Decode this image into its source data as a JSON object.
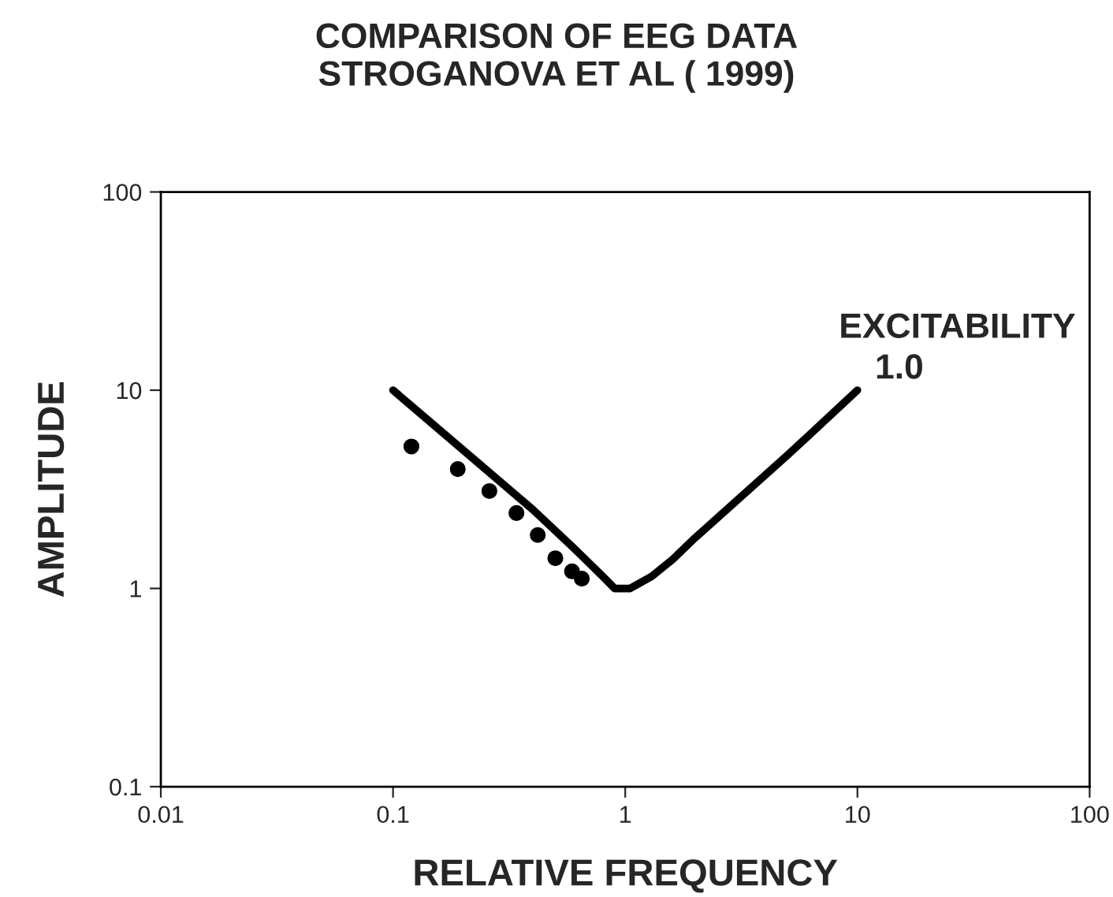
{
  "chart_data": {
    "type": "line",
    "title": "COMPARISON OF EEG DATA\nSTROGANOVA ET AL ( 1999)",
    "xlabel": "RELATIVE FREQUENCY",
    "ylabel": "AMPLITUDE",
    "log": "xy",
    "grid": false,
    "legend": false,
    "xlim": [
      0.01,
      100
    ],
    "xticks": [
      0.01,
      0.1,
      1,
      10,
      100
    ],
    "ylim": [
      0.1,
      100
    ],
    "yticks": [
      0.1,
      1,
      10,
      100
    ],
    "series": [
      {
        "color": "#000000",
        "marker": "none",
        "line_style": "solid",
        "x": [
          0.1,
          0.2,
          0.4,
          0.6,
          0.8,
          0.9,
          1.05,
          1.3,
          1.6,
          2,
          5,
          10
        ],
        "values": [
          10,
          5,
          2.5,
          1.6,
          1.15,
          1.0,
          1.0,
          1.15,
          1.4,
          1.8,
          4.7,
          10
        ]
      },
      {
        "type": "scatter",
        "color": "#000000",
        "marker": "circle",
        "x": [
          0.12,
          0.19,
          0.26,
          0.34,
          0.42,
          0.5,
          0.59,
          0.65
        ],
        "values": [
          5.2,
          4.0,
          3.1,
          2.4,
          1.86,
          1.42,
          1.22,
          1.12
        ]
      }
    ],
    "annotations": [
      "EXCITABILITY",
      {
        "text": "1.0",
        "x": 10,
        "y": 10
      }
    ]
  }
}
